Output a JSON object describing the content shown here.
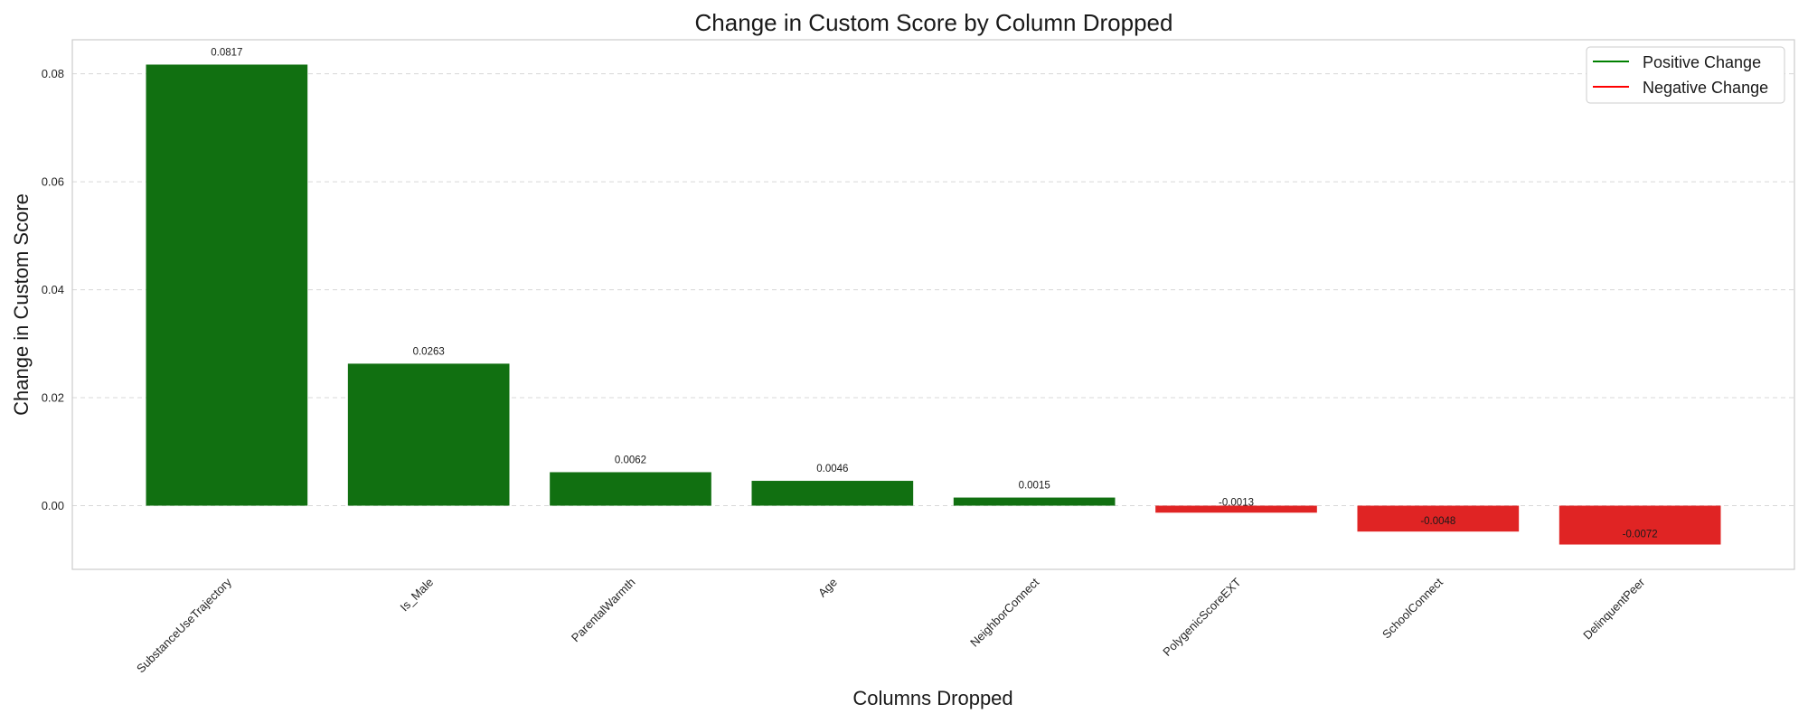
{
  "chart_data": {
    "type": "bar",
    "title": "Change in Custom Score by Column Dropped",
    "xlabel": "Columns Dropped",
    "ylabel": "Change in Custom Score",
    "categories": [
      "SubstanceUseTrajectory",
      "Is_Male",
      "ParentalWarmth",
      "Age",
      "NeighborConnect",
      "PolygenicScoreEXT",
      "SchoolConnect",
      "DelinquentPeer"
    ],
    "values": [
      0.0817,
      0.0263,
      0.0062,
      0.0046,
      0.0015,
      -0.0013,
      -0.0048,
      -0.0072
    ],
    "data_labels": [
      "0.0817",
      "0.0263",
      "0.0062",
      "0.0046",
      "0.0015",
      "-0.0013",
      "-0.0048",
      "-0.0072"
    ],
    "ylim": [
      -0.0118,
      0.0863
    ],
    "yticks": [
      0.0,
      0.02,
      0.04,
      0.06,
      0.08
    ],
    "ytick_labels": [
      "0.00",
      "0.02",
      "0.04",
      "0.06",
      "0.08"
    ],
    "grid": true,
    "legend_position": "top-right",
    "legend": [
      {
        "label": "Positive Change",
        "color": "#008000"
      },
      {
        "label": "Negative Change",
        "color": "#ff0000"
      }
    ],
    "colors": {
      "positive_bar": "#117011",
      "negative_bar": "#e02424"
    }
  }
}
